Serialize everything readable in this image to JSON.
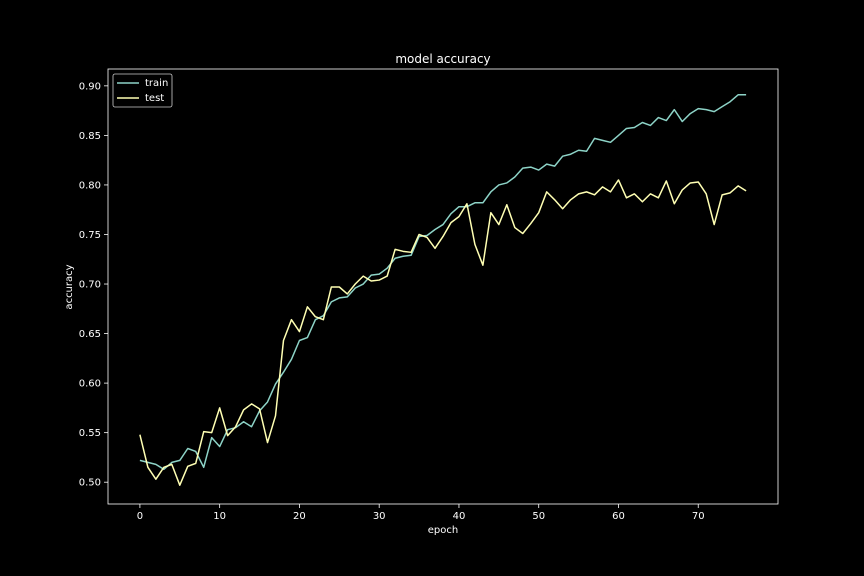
{
  "chart_data": {
    "type": "line",
    "title": "model accuracy",
    "xlabel": "epoch",
    "ylabel": "accuracy",
    "xlim": [
      -4,
      80
    ],
    "ylim": [
      0.478,
      0.917
    ],
    "xticks": [
      0,
      10,
      20,
      30,
      40,
      50,
      60,
      70
    ],
    "xtick_labels": [
      "0",
      "10",
      "20",
      "30",
      "40",
      "50",
      "60",
      "70"
    ],
    "yticks": [
      0.5,
      0.55,
      0.6,
      0.65,
      0.7,
      0.75,
      0.8,
      0.85,
      0.9
    ],
    "ytick_labels": [
      "0.50",
      "0.55",
      "0.60",
      "0.65",
      "0.70",
      "0.75",
      "0.80",
      "0.85",
      "0.90"
    ],
    "grid": false,
    "legend_position": "upper-left",
    "series": [
      {
        "name": "train",
        "color": "#8dd3c7",
        "x": [
          0,
          1,
          2,
          3,
          4,
          5,
          6,
          7,
          8,
          9,
          10,
          11,
          12,
          13,
          14,
          15,
          16,
          17,
          18,
          19,
          20,
          21,
          22,
          23,
          24,
          25,
          26,
          27,
          28,
          29,
          30,
          31,
          32,
          33,
          34,
          35,
          36,
          37,
          38,
          39,
          40,
          41,
          42,
          43,
          44,
          45,
          46,
          47,
          48,
          49,
          50,
          51,
          52,
          53,
          54,
          55,
          56,
          57,
          58,
          59,
          60,
          61,
          62,
          63,
          64,
          65,
          66,
          67,
          68,
          69,
          70,
          71,
          72,
          73,
          74,
          75,
          76
        ],
        "values": [
          0.522,
          0.52,
          0.518,
          0.513,
          0.52,
          0.522,
          0.534,
          0.531,
          0.515,
          0.545,
          0.536,
          0.553,
          0.555,
          0.561,
          0.556,
          0.572,
          0.581,
          0.599,
          0.611,
          0.624,
          0.643,
          0.646,
          0.664,
          0.668,
          0.682,
          0.686,
          0.687,
          0.696,
          0.7,
          0.709,
          0.71,
          0.716,
          0.726,
          0.728,
          0.729,
          0.748,
          0.749,
          0.755,
          0.76,
          0.771,
          0.778,
          0.778,
          0.782,
          0.782,
          0.793,
          0.8,
          0.802,
          0.808,
          0.817,
          0.818,
          0.815,
          0.821,
          0.819,
          0.829,
          0.831,
          0.835,
          0.834,
          0.847,
          0.845,
          0.843,
          0.85,
          0.857,
          0.858,
          0.863,
          0.86,
          0.868,
          0.865,
          0.876,
          0.864,
          0.872,
          0.877,
          0.876,
          0.874,
          0.879,
          0.884,
          0.891,
          0.891
        ]
      },
      {
        "name": "test",
        "color": "#ffffb3",
        "x": [
          0,
          1,
          2,
          3,
          4,
          5,
          6,
          7,
          8,
          9,
          10,
          11,
          12,
          13,
          14,
          15,
          16,
          17,
          18,
          19,
          20,
          21,
          22,
          23,
          24,
          25,
          26,
          27,
          28,
          29,
          30,
          31,
          32,
          33,
          34,
          35,
          36,
          37,
          38,
          39,
          40,
          41,
          42,
          43,
          44,
          45,
          46,
          47,
          48,
          49,
          50,
          51,
          52,
          53,
          54,
          55,
          56,
          57,
          58,
          59,
          60,
          61,
          62,
          63,
          64,
          65,
          66,
          67,
          68,
          69,
          70,
          71,
          72,
          73,
          74,
          75,
          76
        ],
        "values": [
          0.548,
          0.515,
          0.503,
          0.515,
          0.518,
          0.497,
          0.516,
          0.519,
          0.551,
          0.55,
          0.575,
          0.547,
          0.556,
          0.573,
          0.579,
          0.574,
          0.54,
          0.567,
          0.643,
          0.664,
          0.652,
          0.677,
          0.667,
          0.664,
          0.697,
          0.697,
          0.69,
          0.7,
          0.708,
          0.703,
          0.704,
          0.708,
          0.735,
          0.733,
          0.732,
          0.75,
          0.747,
          0.736,
          0.748,
          0.762,
          0.768,
          0.781,
          0.74,
          0.719,
          0.772,
          0.76,
          0.78,
          0.757,
          0.751,
          0.761,
          0.772,
          0.793,
          0.785,
          0.776,
          0.785,
          0.791,
          0.793,
          0.79,
          0.798,
          0.793,
          0.805,
          0.787,
          0.791,
          0.783,
          0.791,
          0.787,
          0.804,
          0.781,
          0.795,
          0.802,
          0.803,
          0.791,
          0.76,
          0.79,
          0.792,
          0.799,
          0.794
        ]
      }
    ]
  }
}
